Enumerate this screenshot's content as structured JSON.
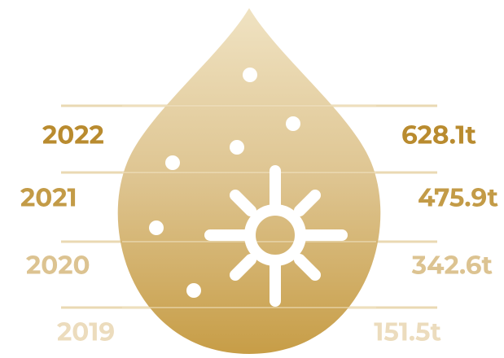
{
  "rows": [
    {
      "year": "2022",
      "amount": "628.1t"
    },
    {
      "year": "2021",
      "amount": "475.9t"
    },
    {
      "year": "2020",
      "amount": "342.6t"
    },
    {
      "year": "2019",
      "amount": "151.5t"
    }
  ]
}
